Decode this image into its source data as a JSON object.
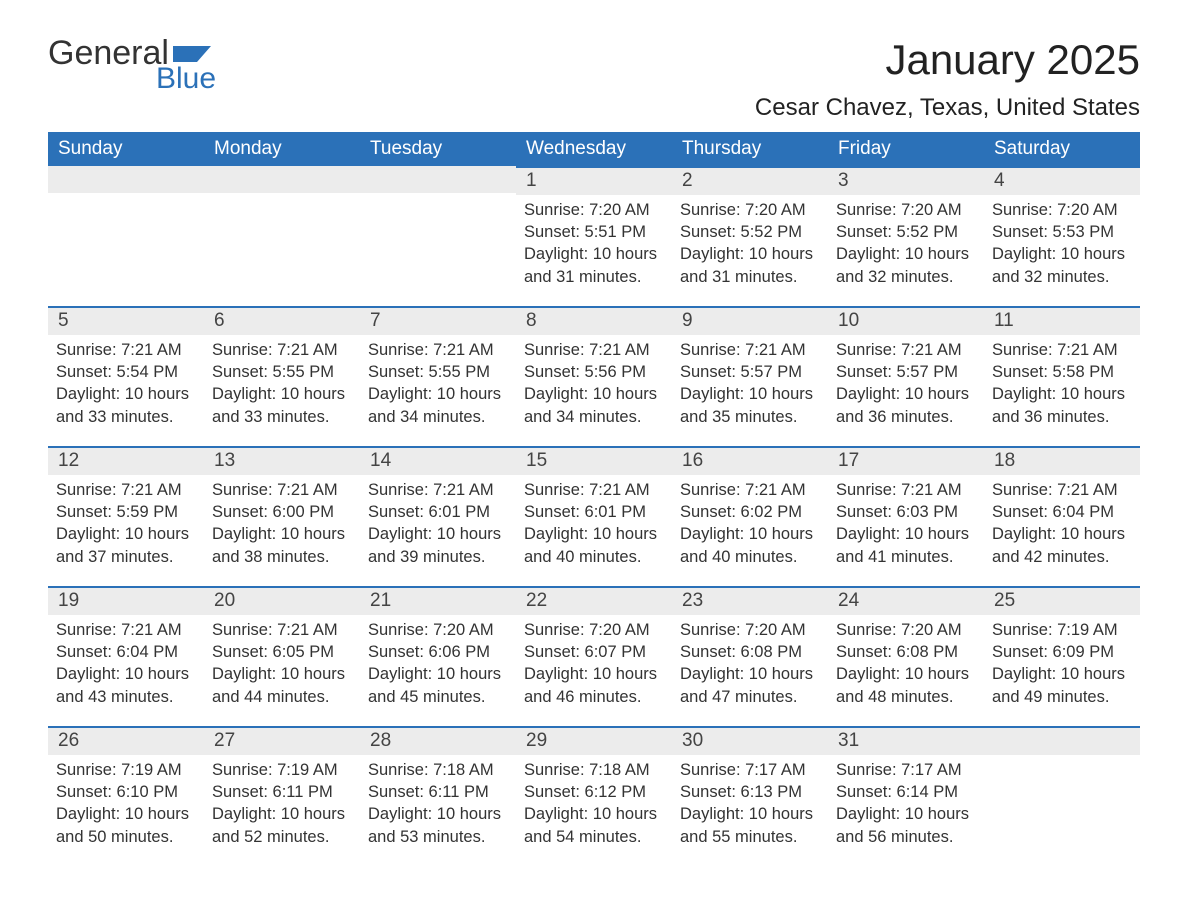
{
  "logo": {
    "word1": "General",
    "word2": "Blue"
  },
  "title": "January 2025",
  "location": "Cesar Chavez, Texas, United States",
  "colors": {
    "brand_blue": "#2b71b8",
    "header_bg": "#2b71b8",
    "header_text": "#ffffff",
    "daynum_bg": "#ececec",
    "rule": "#2b71b8",
    "body_text": "#333333",
    "page_bg": "#ffffff"
  },
  "fonts": {
    "title_pt": 42,
    "location_pt": 24,
    "weekday_pt": 19,
    "daynum_pt": 19,
    "body_pt": 16.5,
    "logo_pt": 34
  },
  "weekdays": [
    "Sunday",
    "Monday",
    "Tuesday",
    "Wednesday",
    "Thursday",
    "Friday",
    "Saturday"
  ],
  "weeks": [
    [
      {
        "blank": true,
        "nobar": true
      },
      {
        "blank": true,
        "nobar": true
      },
      {
        "blank": true,
        "nobar": true
      },
      {
        "day": "1",
        "sunrise": "7:20 AM",
        "sunset": "5:51 PM",
        "daylight": "10 hours and 31 minutes."
      },
      {
        "day": "2",
        "sunrise": "7:20 AM",
        "sunset": "5:52 PM",
        "daylight": "10 hours and 31 minutes."
      },
      {
        "day": "3",
        "sunrise": "7:20 AM",
        "sunset": "5:52 PM",
        "daylight": "10 hours and 32 minutes."
      },
      {
        "day": "4",
        "sunrise": "7:20 AM",
        "sunset": "5:53 PM",
        "daylight": "10 hours and 32 minutes."
      }
    ],
    [
      {
        "day": "5",
        "sunrise": "7:21 AM",
        "sunset": "5:54 PM",
        "daylight": "10 hours and 33 minutes."
      },
      {
        "day": "6",
        "sunrise": "7:21 AM",
        "sunset": "5:55 PM",
        "daylight": "10 hours and 33 minutes."
      },
      {
        "day": "7",
        "sunrise": "7:21 AM",
        "sunset": "5:55 PM",
        "daylight": "10 hours and 34 minutes."
      },
      {
        "day": "8",
        "sunrise": "7:21 AM",
        "sunset": "5:56 PM",
        "daylight": "10 hours and 34 minutes."
      },
      {
        "day": "9",
        "sunrise": "7:21 AM",
        "sunset": "5:57 PM",
        "daylight": "10 hours and 35 minutes."
      },
      {
        "day": "10",
        "sunrise": "7:21 AM",
        "sunset": "5:57 PM",
        "daylight": "10 hours and 36 minutes."
      },
      {
        "day": "11",
        "sunrise": "7:21 AM",
        "sunset": "5:58 PM",
        "daylight": "10 hours and 36 minutes."
      }
    ],
    [
      {
        "day": "12",
        "sunrise": "7:21 AM",
        "sunset": "5:59 PM",
        "daylight": "10 hours and 37 minutes."
      },
      {
        "day": "13",
        "sunrise": "7:21 AM",
        "sunset": "6:00 PM",
        "daylight": "10 hours and 38 minutes."
      },
      {
        "day": "14",
        "sunrise": "7:21 AM",
        "sunset": "6:01 PM",
        "daylight": "10 hours and 39 minutes."
      },
      {
        "day": "15",
        "sunrise": "7:21 AM",
        "sunset": "6:01 PM",
        "daylight": "10 hours and 40 minutes."
      },
      {
        "day": "16",
        "sunrise": "7:21 AM",
        "sunset": "6:02 PM",
        "daylight": "10 hours and 40 minutes."
      },
      {
        "day": "17",
        "sunrise": "7:21 AM",
        "sunset": "6:03 PM",
        "daylight": "10 hours and 41 minutes."
      },
      {
        "day": "18",
        "sunrise": "7:21 AM",
        "sunset": "6:04 PM",
        "daylight": "10 hours and 42 minutes."
      }
    ],
    [
      {
        "day": "19",
        "sunrise": "7:21 AM",
        "sunset": "6:04 PM",
        "daylight": "10 hours and 43 minutes."
      },
      {
        "day": "20",
        "sunrise": "7:21 AM",
        "sunset": "6:05 PM",
        "daylight": "10 hours and 44 minutes."
      },
      {
        "day": "21",
        "sunrise": "7:20 AM",
        "sunset": "6:06 PM",
        "daylight": "10 hours and 45 minutes."
      },
      {
        "day": "22",
        "sunrise": "7:20 AM",
        "sunset": "6:07 PM",
        "daylight": "10 hours and 46 minutes."
      },
      {
        "day": "23",
        "sunrise": "7:20 AM",
        "sunset": "6:08 PM",
        "daylight": "10 hours and 47 minutes."
      },
      {
        "day": "24",
        "sunrise": "7:20 AM",
        "sunset": "6:08 PM",
        "daylight": "10 hours and 48 minutes."
      },
      {
        "day": "25",
        "sunrise": "7:19 AM",
        "sunset": "6:09 PM",
        "daylight": "10 hours and 49 minutes."
      }
    ],
    [
      {
        "day": "26",
        "sunrise": "7:19 AM",
        "sunset": "6:10 PM",
        "daylight": "10 hours and 50 minutes."
      },
      {
        "day": "27",
        "sunrise": "7:19 AM",
        "sunset": "6:11 PM",
        "daylight": "10 hours and 52 minutes."
      },
      {
        "day": "28",
        "sunrise": "7:18 AM",
        "sunset": "6:11 PM",
        "daylight": "10 hours and 53 minutes."
      },
      {
        "day": "29",
        "sunrise": "7:18 AM",
        "sunset": "6:12 PM",
        "daylight": "10 hours and 54 minutes."
      },
      {
        "day": "30",
        "sunrise": "7:17 AM",
        "sunset": "6:13 PM",
        "daylight": "10 hours and 55 minutes."
      },
      {
        "day": "31",
        "sunrise": "7:17 AM",
        "sunset": "6:14 PM",
        "daylight": "10 hours and 56 minutes."
      },
      {
        "blank": true
      }
    ]
  ],
  "labels": {
    "sunrise": "Sunrise: ",
    "sunset": "Sunset: ",
    "daylight": "Daylight: "
  }
}
